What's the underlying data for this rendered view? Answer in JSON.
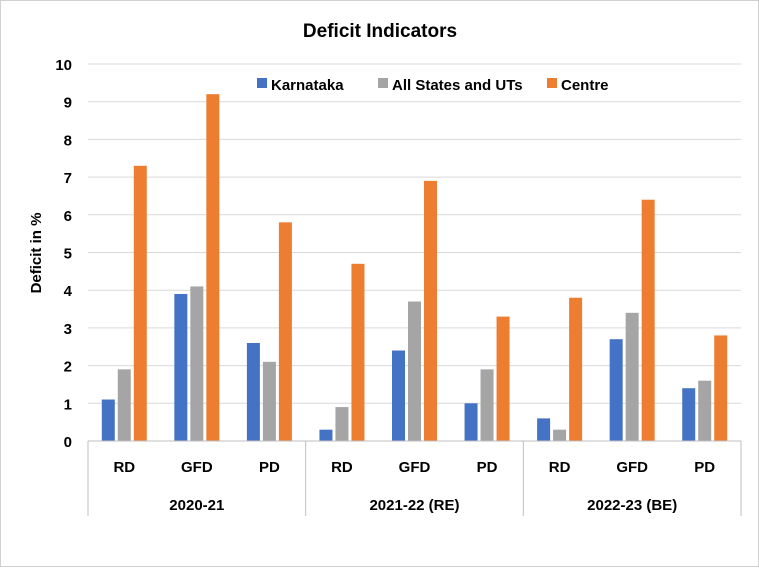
{
  "chart_data": {
    "type": "bar",
    "title": "Deficit Indicators",
    "ylabel": "Deficit in %",
    "xlabel": "",
    "ylim": [
      0,
      10
    ],
    "yticks": [
      0,
      1,
      2,
      3,
      4,
      5,
      6,
      7,
      8,
      9,
      10
    ],
    "grid": true,
    "legend_position": "top",
    "groups": [
      {
        "label": "2020-21",
        "categories": [
          "RD",
          "GFD",
          "PD"
        ]
      },
      {
        "label": "2021-22 (RE)",
        "categories": [
          "RD",
          "GFD",
          "PD"
        ]
      },
      {
        "label": "2022-23 (BE)",
        "categories": [
          "RD",
          "GFD",
          "PD"
        ]
      }
    ],
    "categories": [
      "RD",
      "GFD",
      "PD",
      "RD",
      "GFD",
      "PD",
      "RD",
      "GFD",
      "PD"
    ],
    "series": [
      {
        "name": "Karnataka",
        "color": "#4472C4",
        "values": [
          1.1,
          3.9,
          2.6,
          0.3,
          2.4,
          1.0,
          0.6,
          2.7,
          1.4
        ]
      },
      {
        "name": "All States and UTs",
        "color": "#A5A5A5",
        "values": [
          1.9,
          4.1,
          2.1,
          0.9,
          3.7,
          1.9,
          0.3,
          3.4,
          1.6
        ]
      },
      {
        "name": "Centre",
        "color": "#ED7D31",
        "values": [
          7.3,
          9.2,
          5.8,
          4.7,
          6.9,
          3.3,
          3.8,
          6.4,
          2.8
        ]
      }
    ]
  }
}
